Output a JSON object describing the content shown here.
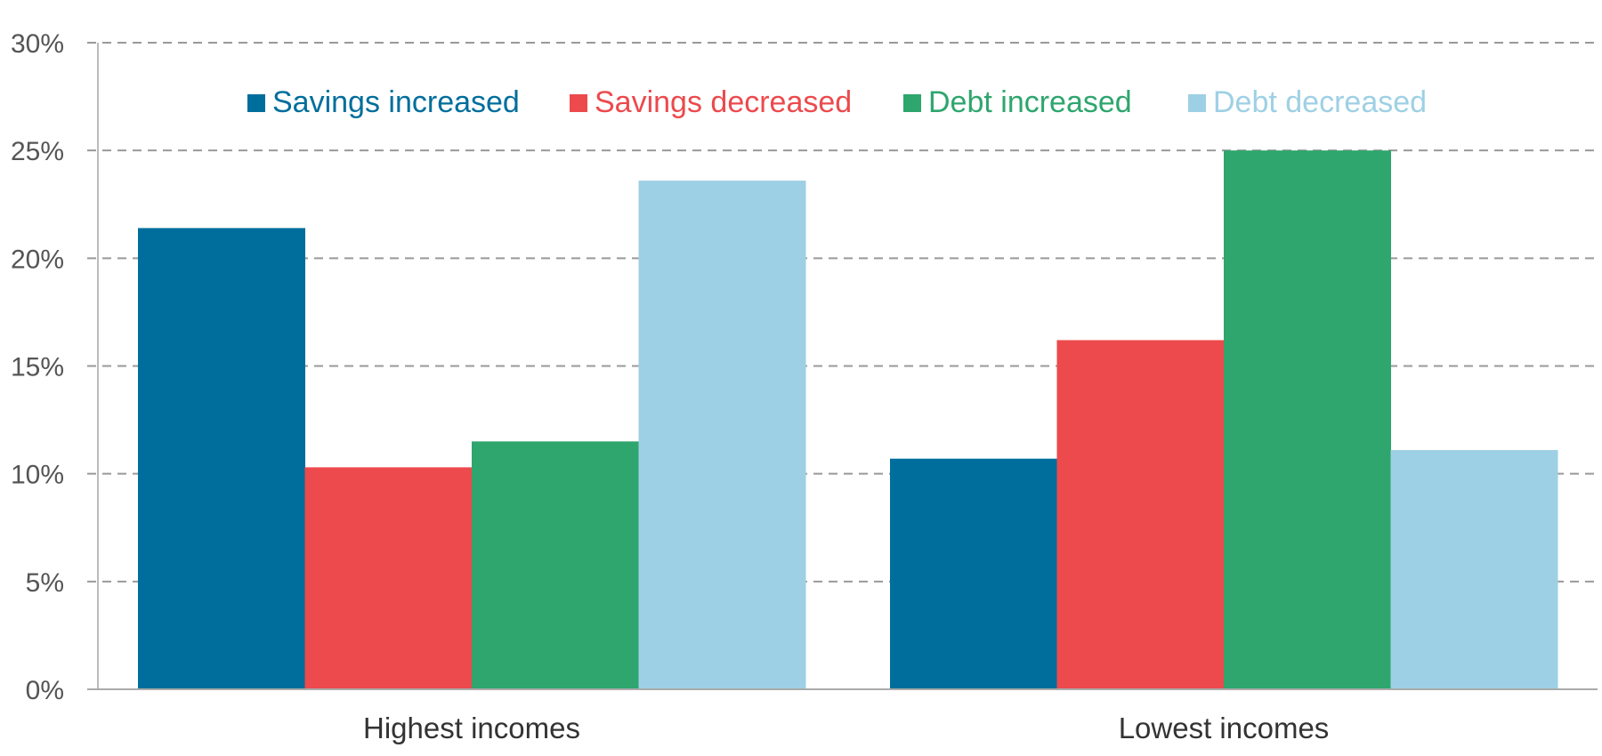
{
  "chart_data": {
    "type": "bar",
    "title": "",
    "xlabel": "",
    "ylabel": "",
    "categories": [
      "Highest incomes",
      "Lowest incomes"
    ],
    "series": [
      {
        "name": "Savings increased",
        "color": "#006e9c",
        "values": [
          21.4,
          10.7
        ]
      },
      {
        "name": "Savings decreased",
        "color": "#ec4a4d",
        "values": [
          10.3,
          16.2
        ]
      },
      {
        "name": "Debt increased",
        "color": "#2ea66e",
        "values": [
          11.5,
          25.0
        ]
      },
      {
        "name": "Debt decreased",
        "color": "#9ed0e5",
        "values": [
          23.6,
          11.1
        ]
      }
    ],
    "ylim": [
      0,
      30
    ],
    "yticks": [
      0,
      5,
      10,
      15,
      20,
      25,
      30
    ],
    "ytick_labels": [
      "0%",
      "5%",
      "10%",
      "15%",
      "20%",
      "25%",
      "30%"
    ],
    "grid": true,
    "grid_style": "dashed",
    "legend_position": "top-center"
  }
}
